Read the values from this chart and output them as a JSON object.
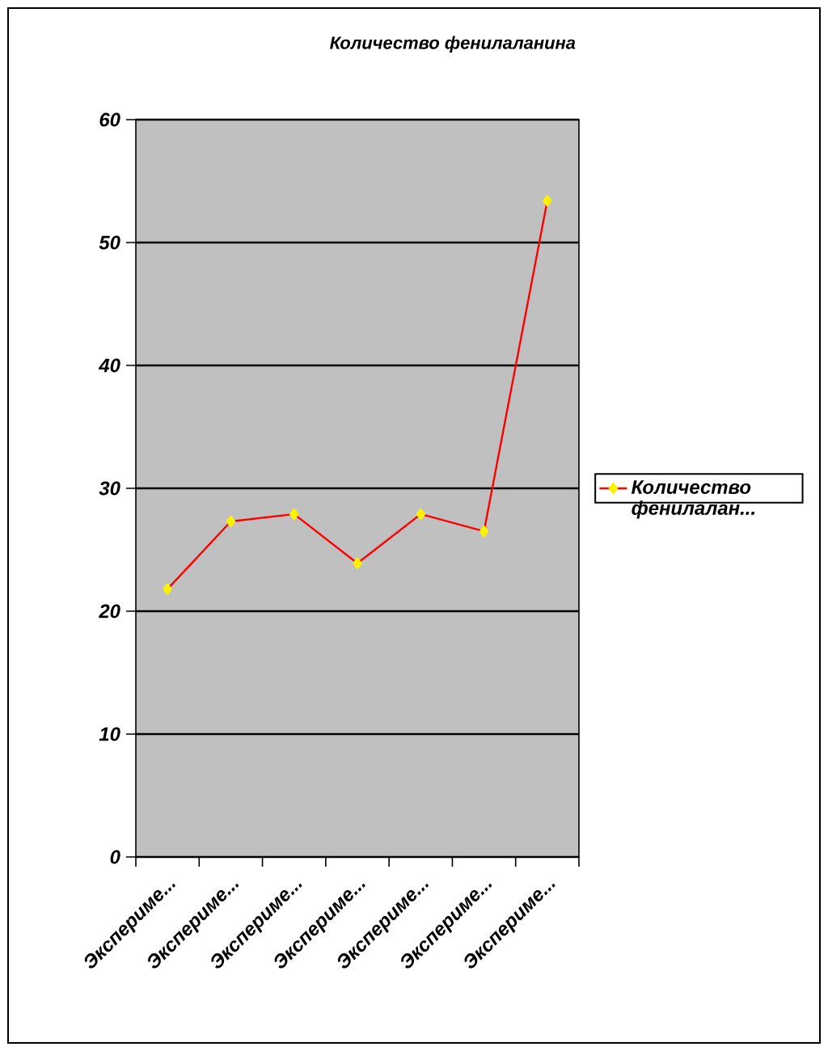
{
  "chart_data": {
    "type": "line",
    "title": "Количество фенилаланина",
    "categories": [
      "Экспериме...",
      "Экспериме...",
      "Экспериме...",
      "Экспериме...",
      "Экспериме...",
      "Экспериме...",
      "Экспериме..."
    ],
    "series": [
      {
        "name": "Количество фенилалан...",
        "color": "#ff0000",
        "values": [
          21.8,
          27.3,
          27.9,
          23.9,
          27.9,
          26.5,
          53.4
        ]
      }
    ],
    "ylim": [
      0,
      60
    ],
    "yticks": [
      0,
      10,
      20,
      30,
      40,
      50,
      60
    ],
    "grid": "y",
    "legend": "right",
    "marker": "diamond",
    "line_style": "solid"
  }
}
